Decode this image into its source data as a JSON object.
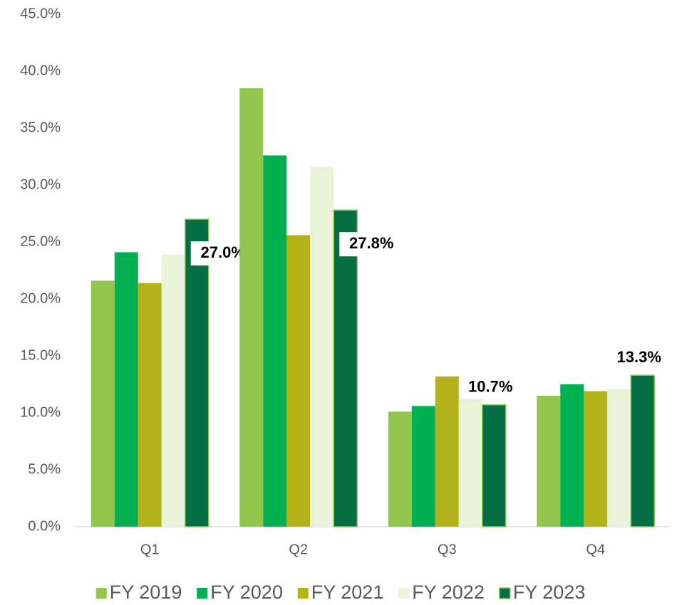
{
  "chart_data": {
    "type": "bar",
    "categories": [
      "Q1",
      "Q2",
      "Q3",
      "Q4"
    ],
    "series": [
      {
        "name": "FY 2019",
        "color": "#92c74e",
        "values": [
          21.6,
          38.5,
          10.1,
          11.5
        ]
      },
      {
        "name": "FY 2020",
        "color": "#00b050",
        "values": [
          24.1,
          32.6,
          10.6,
          12.5
        ]
      },
      {
        "name": "FY 2021",
        "color": "#b3b319",
        "values": [
          21.4,
          25.6,
          13.2,
          11.9
        ]
      },
      {
        "name": "FY 2022",
        "color": "#e8f3d8",
        "values": [
          23.9,
          31.6,
          11.2,
          12.1
        ]
      },
      {
        "name": "FY 2023",
        "color": "#066e45",
        "values": [
          27.0,
          27.8,
          10.7,
          13.3
        ],
        "value_labels": [
          "27.0%",
          "27.8%",
          "10.7%",
          "13.3%"
        ]
      }
    ],
    "ylim": [
      0,
      45
    ],
    "yticks": [
      {
        "value": 0,
        "label": "0.0%"
      },
      {
        "value": 5,
        "label": "5.0%"
      },
      {
        "value": 10,
        "label": "10.0%"
      },
      {
        "value": 15,
        "label": "15.0%"
      },
      {
        "value": 20,
        "label": "20.0%"
      },
      {
        "value": 25,
        "label": "25.0%"
      },
      {
        "value": 30,
        "label": "30.0%"
      },
      {
        "value": 35,
        "label": "35.0%"
      },
      {
        "value": 40,
        "label": "40.0%"
      },
      {
        "value": 45,
        "label": "45.0%"
      }
    ],
    "grid": false,
    "legend": "bottom"
  }
}
